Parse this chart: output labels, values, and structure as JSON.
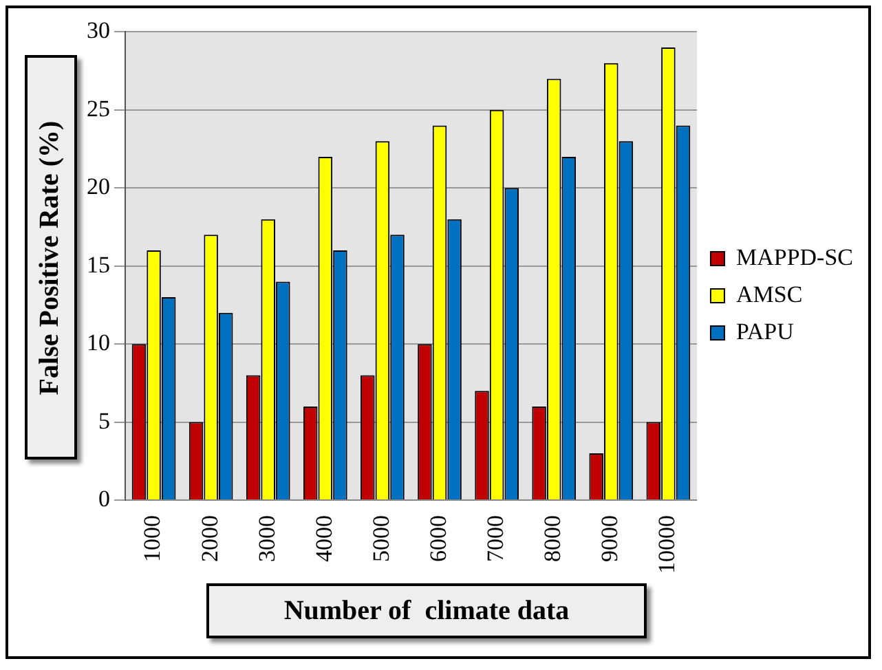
{
  "chart_data": {
    "type": "bar",
    "xlabel": "Number of  climate data",
    "ylabel": "False Positive Rate (%)",
    "categories": [
      "1000",
      "2000",
      "3000",
      "4000",
      "5000",
      "6000",
      "7000",
      "8000",
      "9000",
      "10000"
    ],
    "series": [
      {
        "name": "MAPPD-SC",
        "color": "#c00000",
        "values": [
          10,
          5,
          8,
          6,
          8,
          10,
          7,
          6,
          3,
          5
        ]
      },
      {
        "name": "AMSC",
        "color": "#ffff00",
        "values": [
          16,
          17,
          18,
          22,
          23,
          24,
          25,
          27,
          28,
          29
        ]
      },
      {
        "name": "PAPU",
        "color": "#0070c0",
        "values": [
          13,
          12,
          14,
          16,
          17,
          18,
          20,
          22,
          23,
          24
        ]
      }
    ],
    "ylim": [
      0,
      30
    ],
    "yticks": [
      0,
      5,
      10,
      15,
      20,
      25,
      30
    ],
    "grid": "y",
    "legend": "right"
  }
}
